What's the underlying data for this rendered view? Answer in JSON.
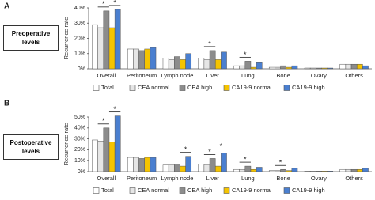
{
  "chart_data": [
    {
      "type": "bar",
      "panel": "A",
      "title": "Preoperative levels",
      "y_label": "Recurrence rate",
      "categories": [
        "Overall",
        "Peritoneum",
        "Lymph node",
        "Liver",
        "Lung",
        "Bone",
        "Ovary",
        "Others"
      ],
      "series": [
        {
          "name": "Total",
          "color": "#ffffff",
          "values": [
            29,
            13,
            7,
            7,
            2,
            1,
            0.5,
            3
          ]
        },
        {
          "name": "CEA normal",
          "color": "#e6e6e6",
          "values": [
            27,
            13,
            6,
            6,
            2,
            1,
            0.5,
            3
          ]
        },
        {
          "name": "CEA high",
          "color": "#8c8c8c",
          "values": [
            38,
            12,
            8,
            12,
            5,
            2,
            0.5,
            3
          ]
        },
        {
          "name": "CA19-9 normal",
          "color": "#f5c400",
          "values": [
            27,
            13,
            6,
            6,
            1,
            1,
            0.5,
            3
          ]
        },
        {
          "name": "CA19-9 high",
          "color": "#4a7fd0",
          "values": [
            39,
            14,
            10,
            11,
            4,
            2,
            0.5,
            2
          ]
        }
      ],
      "ylim": [
        0,
        40
      ],
      "yticks": [
        {
          "value": 0,
          "label": "0%"
        },
        {
          "value": 10,
          "label": "10%"
        },
        {
          "value": 20,
          "label": "20%"
        },
        {
          "value": 30,
          "label": "30%"
        },
        {
          "value": 40,
          "label": "40%"
        }
      ],
      "annotations": [
        "*",
        "*",
        "*",
        "*"
      ],
      "grid": false,
      "legend": "bottom"
    },
    {
      "type": "bar",
      "panel": "B",
      "title": "Postoperative levels",
      "y_label": "Recurrence rate",
      "categories": [
        "Overall",
        "Peritoneum",
        "Lymph node",
        "Liver",
        "Lung",
        "Bone",
        "Ovary",
        "Others"
      ],
      "series": [
        {
          "name": "Total",
          "color": "#ffffff",
          "values": [
            29,
            13,
            6,
            7,
            2,
            1,
            0.5,
            2
          ]
        },
        {
          "name": "CEA normal",
          "color": "#e6e6e6",
          "values": [
            28,
            13,
            6,
            6,
            2,
            1,
            0.5,
            2
          ]
        },
        {
          "name": "CEA high",
          "color": "#8c8c8c",
          "values": [
            40,
            12,
            7,
            12,
            5,
            2,
            0.5,
            2
          ]
        },
        {
          "name": "CA19-9 normal",
          "color": "#f5c400",
          "values": [
            27,
            13,
            5,
            5,
            2,
            1,
            0.5,
            2
          ]
        },
        {
          "name": "CA19-9 high",
          "color": "#4a7fd0",
          "values": [
            51,
            13,
            14,
            17,
            4,
            3,
            0.5,
            3
          ]
        }
      ],
      "ylim": [
        0,
        50
      ],
      "yticks": [
        {
          "value": 0,
          "label": "0%"
        },
        {
          "value": 10,
          "label": "10%"
        },
        {
          "value": 20,
          "label": "20%"
        },
        {
          "value": 30,
          "label": "30%"
        },
        {
          "value": 40,
          "label": "40%"
        },
        {
          "value": 50,
          "label": "50%"
        }
      ],
      "annotations": [
        "*",
        "*",
        "*",
        "*",
        "*",
        "*",
        "*"
      ],
      "grid": false,
      "legend": "bottom"
    }
  ]
}
